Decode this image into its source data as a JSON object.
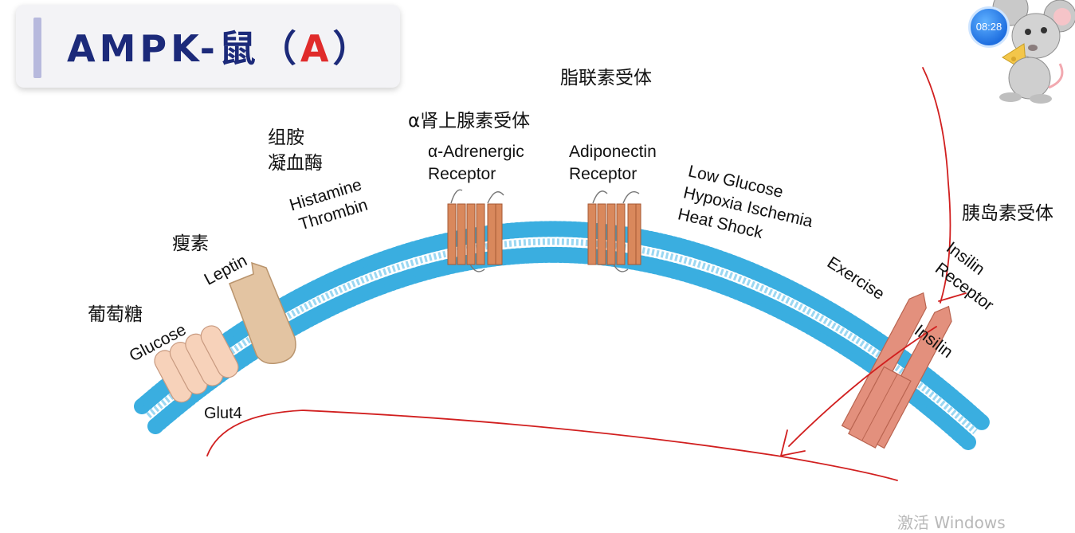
{
  "header": {
    "title_prefix": "AMPK-鼠（",
    "title_accent": "A",
    "title_suffix": "）"
  },
  "timer": {
    "time": "08:28"
  },
  "labels": {
    "adiponectin_zh": "脂联素受体",
    "alpha_adrenergic_zh": "α肾上腺素受体",
    "histamine_zh": "组胺",
    "thrombin_zh": "凝血酶",
    "histamine_en": "Histamine",
    "thrombin_en": "Thrombin",
    "alpha_adrenergic_en_1": "α-Adrenergic",
    "alpha_adrenergic_en_2": "Receptor",
    "adiponectin_en_1": "Adiponectin",
    "adiponectin_en_2": "Receptor",
    "low_glucose": "Low Glucose",
    "hypoxia_ischemia": "Hypoxia Ischemia",
    "heat_shock": "Heat Shock",
    "exercise": "Exercise",
    "insulin_receptor_zh": "胰岛素受体",
    "insulin_receptor_en_1": "Insilin",
    "insulin_receptor_en_2": "Receptor",
    "insulin": "Insilin",
    "leptin_zh": "瘦素",
    "leptin_en": "Leptin",
    "glucose_zh": "葡萄糖",
    "glucose_en": "Glucose",
    "glut4": "Glut4"
  },
  "watermark": "激活 Windows",
  "colors": {
    "title": "#1c2a7a",
    "title_accent": "#e02b2b",
    "membrane": "#3aaee0",
    "receptor": "#d9885c",
    "insulin_receptor": "#e3907d",
    "leptin": "#e3c4a2",
    "glut4": "#f7d2ba",
    "annotation": "#d11f1f"
  }
}
